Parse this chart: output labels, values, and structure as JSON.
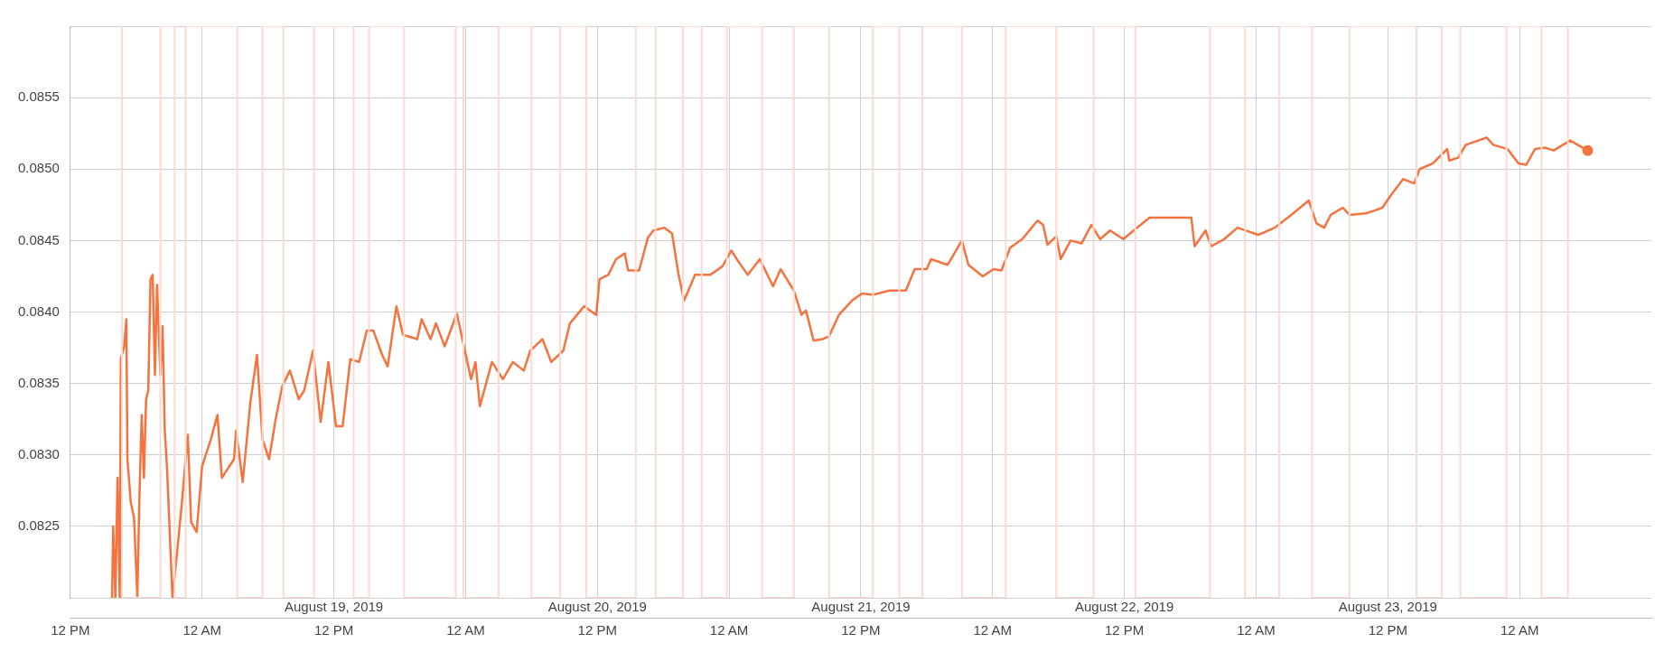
{
  "chart_data": {
    "type": "line",
    "xlim": [
      "2019-08-18T12:00",
      "2019-08-24T12:00"
    ],
    "xticks": [
      {
        "value": "2019-08-18T12:00",
        "label": "12 PM"
      },
      {
        "value": "2019-08-19T00:00",
        "label": "12 AM"
      },
      {
        "value": "2019-08-19T12:00",
        "label": "12 PM"
      },
      {
        "value": "2019-08-20T00:00",
        "label": "12 AM"
      },
      {
        "value": "2019-08-20T12:00",
        "label": "12 PM"
      },
      {
        "value": "2019-08-21T00:00",
        "label": "12 AM"
      },
      {
        "value": "2019-08-21T12:00",
        "label": "12 PM"
      },
      {
        "value": "2019-08-22T00:00",
        "label": "12 AM"
      },
      {
        "value": "2019-08-22T12:00",
        "label": "12 PM"
      },
      {
        "value": "2019-08-23T00:00",
        "label": "12 AM"
      },
      {
        "value": "2019-08-23T12:00",
        "label": "12 PM"
      },
      {
        "value": "2019-08-24T00:00",
        "label": "12 AM"
      }
    ],
    "x2lim": [
      "2019-08-18T12:00",
      "2019-08-24T12:00"
    ],
    "x2ticks": [
      {
        "value": "2019-08-19T12:00",
        "label": "August 19, 2019"
      },
      {
        "value": "2019-08-20T12:00",
        "label": "August 20, 2019"
      },
      {
        "value": "2019-08-21T12:00",
        "label": "August 21, 2019"
      },
      {
        "value": "2019-08-22T12:00",
        "label": "August 22, 2019"
      },
      {
        "value": "2019-08-23T12:00",
        "label": "August 23, 2019"
      }
    ],
    "ylim": [
      0.082,
      0.086
    ],
    "yticks": [
      {
        "value": 0.082,
        "label": null
      },
      {
        "value": 0.0825,
        "label": "0.0825"
      },
      {
        "value": 0.083,
        "label": "0.0830"
      },
      {
        "value": 0.0835,
        "label": "0.0835"
      },
      {
        "value": 0.084,
        "label": "0.0840"
      },
      {
        "value": 0.0845,
        "label": "0.0845"
      },
      {
        "value": 0.085,
        "label": "0.0850"
      },
      {
        "value": 0.0855,
        "label": "0.0855"
      },
      {
        "value": 0.086,
        "label": null
      }
    ],
    "grid": true,
    "series": [
      {
        "color": "#fadbd2",
        "x": [
          "2019-08-18T16:42",
          "2019-08-18T16:42",
          "2019-08-18T20:12",
          "2019-08-18T20:12",
          "2019-08-18T21:30",
          "2019-08-18T21:30",
          "2019-08-18T22:30",
          "2019-08-18T22:30",
          "2019-08-19T03:12",
          "2019-08-19T03:12",
          "2019-08-19T05:30",
          "2019-08-19T05:30",
          "2019-08-19T07:24",
          "2019-08-19T07:24",
          "2019-08-19T10:12",
          "2019-08-19T10:12",
          "2019-08-19T13:48",
          "2019-08-19T13:48",
          "2019-08-19T15:12",
          "2019-08-19T15:12",
          "2019-08-19T18:24",
          "2019-08-19T18:24",
          "2019-08-19T23:06",
          "2019-08-19T23:06",
          "2019-08-19T23:48",
          "2019-08-19T23:48",
          "2019-08-20T03:00",
          "2019-08-20T03:00",
          "2019-08-20T06:00",
          "2019-08-20T06:00",
          "2019-08-20T08:36",
          "2019-08-20T08:36",
          "2019-08-20T11:00",
          "2019-08-20T11:00",
          "2019-08-20T15:30",
          "2019-08-20T15:30",
          "2019-08-20T17:18",
          "2019-08-20T17:18",
          "2019-08-20T19:48",
          "2019-08-20T19:48",
          "2019-08-20T21:30",
          "2019-08-20T21:30",
          "2019-08-20T23:48",
          "2019-08-20T23:48",
          "2019-08-21T03:00",
          "2019-08-21T03:00",
          "2019-08-21T05:54",
          "2019-08-21T05:54",
          "2019-08-21T09:06",
          "2019-08-21T09:06",
          "2019-08-21T13:06",
          "2019-08-21T13:06",
          "2019-08-21T15:30",
          "2019-08-21T15:30",
          "2019-08-21T17:36",
          "2019-08-21T17:36",
          "2019-08-21T21:12",
          "2019-08-21T21:12",
          "2019-08-22T01:12",
          "2019-08-22T01:12",
          "2019-08-22T05:48",
          "2019-08-22T05:48",
          "2019-08-22T09:12",
          "2019-08-22T09:12",
          "2019-08-22T13:00",
          "2019-08-22T13:00",
          "2019-08-22T19:48",
          "2019-08-22T19:48",
          "2019-08-22T23:00",
          "2019-08-22T23:00",
          "2019-08-23T02:06",
          "2019-08-23T02:06",
          "2019-08-23T05:06",
          "2019-08-23T05:06",
          "2019-08-23T08:30",
          "2019-08-23T08:30",
          "2019-08-23T14:36",
          "2019-08-23T14:36",
          "2019-08-23T16:54",
          "2019-08-23T16:54",
          "2019-08-23T18:36",
          "2019-08-23T18:36",
          "2019-08-23T22:48",
          "2019-08-23T22:48",
          "2019-08-24T02:00",
          "2019-08-24T02:00",
          "2019-08-24T04:24",
          "2019-08-24T04:24"
        ],
        "values": [
          0.086,
          0.082,
          0.082,
          0.086,
          0.086,
          0.082,
          0.082,
          0.086,
          0.086,
          0.082,
          0.082,
          0.086,
          0.086,
          0.082,
          0.082,
          0.086,
          0.086,
          0.082,
          0.082,
          0.086,
          0.086,
          0.082,
          0.082,
          0.086,
          0.086,
          0.082,
          0.082,
          0.086,
          0.086,
          0.082,
          0.082,
          0.086,
          0.086,
          0.082,
          0.082,
          0.086,
          0.086,
          0.082,
          0.082,
          0.086,
          0.086,
          0.082,
          0.082,
          0.086,
          0.086,
          0.082,
          0.082,
          0.086,
          0.086,
          0.082,
          0.082,
          0.086,
          0.086,
          0.082,
          0.082,
          0.086,
          0.086,
          0.082,
          0.082,
          0.086,
          0.086,
          0.082,
          0.082,
          0.086,
          0.086,
          0.082,
          0.082,
          0.086,
          0.086,
          0.082,
          0.082,
          0.086,
          0.086,
          0.082,
          0.082,
          0.086,
          0.086,
          0.082,
          0.082,
          0.086,
          0.086,
          0.082,
          0.082,
          0.086,
          0.086,
          0.082,
          0.082,
          0.086
        ]
      },
      {
        "color": "#f4733f",
        "x": [
          "2019-08-18T15:48",
          "2019-08-18T15:54",
          "2019-08-18T16:06",
          "2019-08-18T16:18",
          "2019-08-18T16:30",
          "2019-08-18T16:36",
          "2019-08-18T16:54",
          "2019-08-18T17:06",
          "2019-08-18T17:12",
          "2019-08-18T17:30",
          "2019-08-18T17:48",
          "2019-08-18T18:06",
          "2019-08-18T18:18",
          "2019-08-18T18:30",
          "2019-08-18T18:42",
          "2019-08-18T18:54",
          "2019-08-18T19:06",
          "2019-08-18T19:18",
          "2019-08-18T19:30",
          "2019-08-18T19:42",
          "2019-08-18T19:54",
          "2019-08-18T20:12",
          "2019-08-18T20:24",
          "2019-08-18T20:36",
          "2019-08-18T20:48",
          "2019-08-18T21:18",
          "2019-08-18T21:42",
          "2019-08-18T22:12",
          "2019-08-18T22:42",
          "2019-08-18T23:00",
          "2019-08-18T23:30",
          "2019-08-19T00:00",
          "2019-08-19T00:48",
          "2019-08-19T01:24",
          "2019-08-19T01:48",
          "2019-08-19T02:54",
          "2019-08-19T03:06",
          "2019-08-19T03:42",
          "2019-08-19T04:24",
          "2019-08-19T05:00",
          "2019-08-19T05:30",
          "2019-08-19T06:06",
          "2019-08-19T06:42",
          "2019-08-19T07:18",
          "2019-08-19T08:00",
          "2019-08-19T08:48",
          "2019-08-19T09:18",
          "2019-08-19T10:06",
          "2019-08-19T10:48",
          "2019-08-19T11:30",
          "2019-08-19T12:12",
          "2019-08-19T12:48",
          "2019-08-19T13:30",
          "2019-08-19T14:18",
          "2019-08-19T15:00",
          "2019-08-19T15:36",
          "2019-08-19T16:24",
          "2019-08-19T16:54",
          "2019-08-19T17:42",
          "2019-08-19T18:18",
          "2019-08-19T19:36",
          "2019-08-19T20:00",
          "2019-08-19T20:48",
          "2019-08-19T21:18",
          "2019-08-19T22:06",
          "2019-08-19T23:12",
          "2019-08-20T00:30",
          "2019-08-20T00:54",
          "2019-08-20T01:18",
          "2019-08-20T02:24",
          "2019-08-20T03:24",
          "2019-08-20T04:18",
          "2019-08-20T05:18",
          "2019-08-20T05:54",
          "2019-08-20T07:00",
          "2019-08-20T07:48",
          "2019-08-20T08:54",
          "2019-08-20T09:30",
          "2019-08-20T10:48",
          "2019-08-20T11:54",
          "2019-08-20T12:12",
          "2019-08-20T13:00",
          "2019-08-20T13:42",
          "2019-08-20T14:30",
          "2019-08-20T14:48",
          "2019-08-20T15:48",
          "2019-08-20T16:36",
          "2019-08-20T17:06",
          "2019-08-20T18:06",
          "2019-08-20T18:48",
          "2019-08-20T19:24",
          "2019-08-20T19:54",
          "2019-08-20T20:54",
          "2019-08-20T22:18",
          "2019-08-20T23:24",
          "2019-08-21T00:12",
          "2019-08-21T00:42",
          "2019-08-21T01:42",
          "2019-08-21T02:48",
          "2019-08-21T04:00",
          "2019-08-21T04:42",
          "2019-08-21T05:54",
          "2019-08-21T06:36",
          "2019-08-21T07:00",
          "2019-08-21T07:42",
          "2019-08-21T08:30",
          "2019-08-21T09:06",
          "2019-08-21T10:00",
          "2019-08-21T11:12",
          "2019-08-21T12:06",
          "2019-08-21T13:06",
          "2019-08-21T14:36",
          "2019-08-21T16:06",
          "2019-08-21T16:54",
          "2019-08-21T18:00",
          "2019-08-21T18:24",
          "2019-08-21T19:54",
          "2019-08-21T21:12",
          "2019-08-21T21:48",
          "2019-08-21T23:06",
          "2019-08-22T00:06",
          "2019-08-22T00:48",
          "2019-08-22T01:36",
          "2019-08-22T02:42",
          "2019-08-22T04:06",
          "2019-08-22T04:36",
          "2019-08-22T05:00",
          "2019-08-22T05:48",
          "2019-08-22T06:12",
          "2019-08-22T07:06",
          "2019-08-22T08:06",
          "2019-08-22T09:00",
          "2019-08-22T09:48",
          "2019-08-22T10:42",
          "2019-08-22T11:54",
          "2019-08-22T13:00",
          "2019-08-22T14:18",
          "2019-08-22T18:06",
          "2019-08-22T18:24",
          "2019-08-22T19:24",
          "2019-08-22T19:54",
          "2019-08-22T21:06",
          "2019-08-22T22:18",
          "2019-08-23T00:12",
          "2019-08-23T01:42",
          "2019-08-23T03:12",
          "2019-08-23T04:48",
          "2019-08-23T05:30",
          "2019-08-23T06:12",
          "2019-08-23T06:48",
          "2019-08-23T07:54",
          "2019-08-23T08:30",
          "2019-08-23T10:00",
          "2019-08-23T10:48",
          "2019-08-23T11:30",
          "2019-08-23T12:18",
          "2019-08-23T13:24",
          "2019-08-23T14:24",
          "2019-08-23T14:54",
          "2019-08-23T16:06",
          "2019-08-23T17:24",
          "2019-08-23T17:36",
          "2019-08-23T18:24",
          "2019-08-23T19:06",
          "2019-08-23T21:00",
          "2019-08-23T21:36",
          "2019-08-23T22:54",
          "2019-08-23T23:54",
          "2019-08-24T00:36",
          "2019-08-24T01:24",
          "2019-08-24T02:18",
          "2019-08-24T03:06",
          "2019-08-24T04:36",
          "2019-08-24T05:18",
          "2019-08-24T06:12"
        ],
        "values": [
          0.082,
          0.0825,
          0.082,
          0.08284,
          0.082,
          0.08367,
          0.08376,
          0.08395,
          0.08297,
          0.08267,
          0.08256,
          0.082,
          0.08273,
          0.08328,
          0.08284,
          0.08339,
          0.08345,
          0.08423,
          0.08426,
          0.08356,
          0.08419,
          0.08356,
          0.0839,
          0.08317,
          0.08292,
          0.082,
          0.0823,
          0.0827,
          0.08314,
          0.08253,
          0.08246,
          0.08292,
          0.08311,
          0.08328,
          0.08284,
          0.08297,
          0.08317,
          0.08281,
          0.08337,
          0.0837,
          0.08311,
          0.08297,
          0.08325,
          0.08348,
          0.08359,
          0.08339,
          0.08345,
          0.08373,
          0.08323,
          0.08365,
          0.0832,
          0.0832,
          0.08367,
          0.08365,
          0.08387,
          0.08387,
          0.0837,
          0.08362,
          0.08404,
          0.08384,
          0.08381,
          0.08395,
          0.08381,
          0.08392,
          0.08376,
          0.08399,
          0.08353,
          0.08365,
          0.08334,
          0.08365,
          0.08353,
          0.08365,
          0.08359,
          0.08373,
          0.08381,
          0.08365,
          0.08373,
          0.08392,
          0.08404,
          0.08398,
          0.08423,
          0.08426,
          0.08437,
          0.08441,
          0.08429,
          0.08429,
          0.08452,
          0.08457,
          0.08459,
          0.08455,
          0.08426,
          0.08408,
          0.08426,
          0.08426,
          0.08432,
          0.08443,
          0.08437,
          0.08426,
          0.08437,
          0.08418,
          0.0843,
          0.08415,
          0.08398,
          0.08401,
          0.0838,
          0.08381,
          0.08383,
          0.08398,
          0.08408,
          0.08413,
          0.08412,
          0.08415,
          0.08415,
          0.0843,
          0.0843,
          0.08437,
          0.08433,
          0.0845,
          0.08433,
          0.08425,
          0.0843,
          0.08429,
          0.08445,
          0.08451,
          0.08464,
          0.08461,
          0.08447,
          0.08453,
          0.08437,
          0.0845,
          0.08448,
          0.08461,
          0.08451,
          0.08457,
          0.08451,
          0.08458,
          0.08466,
          0.08466,
          0.08446,
          0.08457,
          0.08446,
          0.08451,
          0.08459,
          0.08454,
          0.08459,
          0.08468,
          0.08478,
          0.08462,
          0.08459,
          0.08468,
          0.08473,
          0.08468,
          0.08469,
          0.08471,
          0.08473,
          0.08482,
          0.08493,
          0.0849,
          0.085,
          0.08504,
          0.08514,
          0.08506,
          0.08508,
          0.08517,
          0.08522,
          0.08517,
          0.08514,
          0.08504,
          0.08503,
          0.08514,
          0.08515,
          0.08513,
          0.0852,
          0.08517,
          0.08513
        ]
      }
    ]
  }
}
